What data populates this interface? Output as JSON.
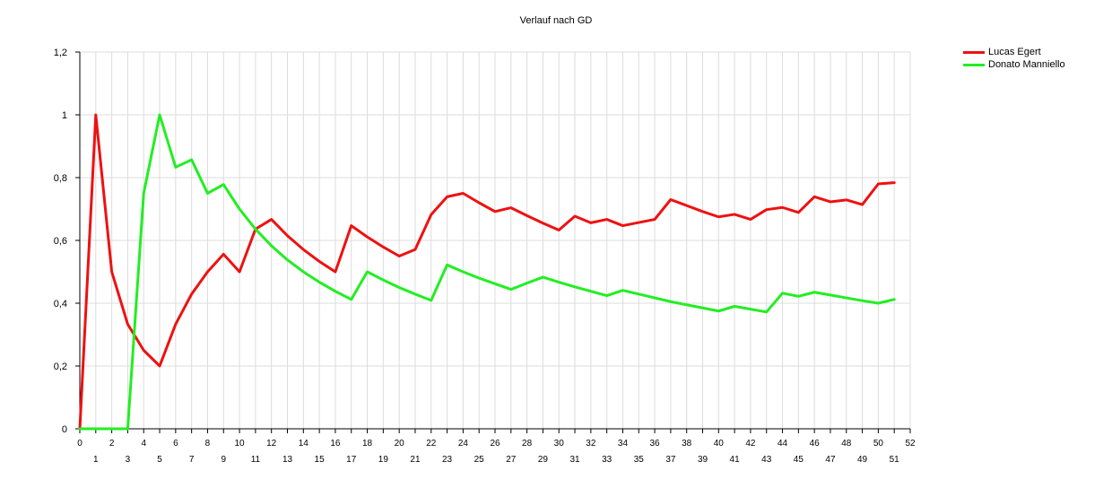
{
  "chart_data": {
    "type": "line",
    "title": "Verlauf nach GD",
    "xlabel": "",
    "ylabel": "",
    "xlim": [
      0,
      52
    ],
    "ylim": [
      0,
      1.2
    ],
    "y_ticks": [
      "0",
      "0,2",
      "0,4",
      "0,6",
      "0,8",
      "1",
      "1,2"
    ],
    "x_ticks": [
      0,
      1,
      2,
      3,
      4,
      5,
      6,
      7,
      8,
      9,
      10,
      11,
      12,
      13,
      14,
      15,
      16,
      17,
      18,
      19,
      20,
      21,
      22,
      23,
      24,
      25,
      26,
      27,
      28,
      29,
      30,
      31,
      32,
      33,
      34,
      35,
      36,
      37,
      38,
      39,
      40,
      41,
      42,
      43,
      44,
      45,
      46,
      47,
      48,
      49,
      50,
      51,
      52
    ],
    "grid": true,
    "legend_position": "top-right",
    "x": [
      0,
      1,
      2,
      3,
      4,
      5,
      6,
      7,
      8,
      9,
      10,
      11,
      12,
      13,
      14,
      15,
      16,
      17,
      18,
      19,
      20,
      21,
      22,
      23,
      24,
      25,
      26,
      27,
      28,
      29,
      30,
      31,
      32,
      33,
      34,
      35,
      36,
      37,
      38,
      39,
      40,
      41,
      42,
      43,
      44,
      45,
      46,
      47,
      48,
      49,
      50,
      51
    ],
    "series": [
      {
        "name": "Lucas Egert",
        "color": "#ee1111",
        "values": [
          0,
          1,
          0.5,
          0.333,
          0.25,
          0.2,
          0.333,
          0.429,
          0.5,
          0.556,
          0.5,
          0.636,
          0.667,
          0.615,
          0.571,
          0.533,
          0.5,
          0.647,
          0.611,
          0.579,
          0.55,
          0.571,
          0.682,
          0.739,
          0.75,
          0.72,
          0.692,
          0.704,
          0.679,
          0.655,
          0.633,
          0.677,
          0.656,
          0.667,
          0.647,
          0.657,
          0.667,
          0.73,
          0.711,
          0.692,
          0.675,
          0.683,
          0.667,
          0.698,
          0.705,
          0.689,
          0.739,
          0.723,
          0.729,
          0.714,
          0.78,
          0.784
        ]
      },
      {
        "name": "Donato Manniello",
        "color": "#22ee22",
        "values": [
          0,
          0,
          0,
          0,
          0.75,
          1,
          0.833,
          0.857,
          0.75,
          0.778,
          0.7,
          0.636,
          0.583,
          0.538,
          0.5,
          0.467,
          0.438,
          0.412,
          0.5,
          0.474,
          0.45,
          0.429,
          0.409,
          0.522,
          0.5,
          0.48,
          0.462,
          0.444,
          0.464,
          0.483,
          0.467,
          0.452,
          0.438,
          0.424,
          0.441,
          0.429,
          0.417,
          0.405,
          0.395,
          0.385,
          0.375,
          0.39,
          0.381,
          0.372,
          0.432,
          0.422,
          0.435,
          0.426,
          0.417,
          0.408,
          0.4,
          0.412
        ]
      }
    ]
  }
}
